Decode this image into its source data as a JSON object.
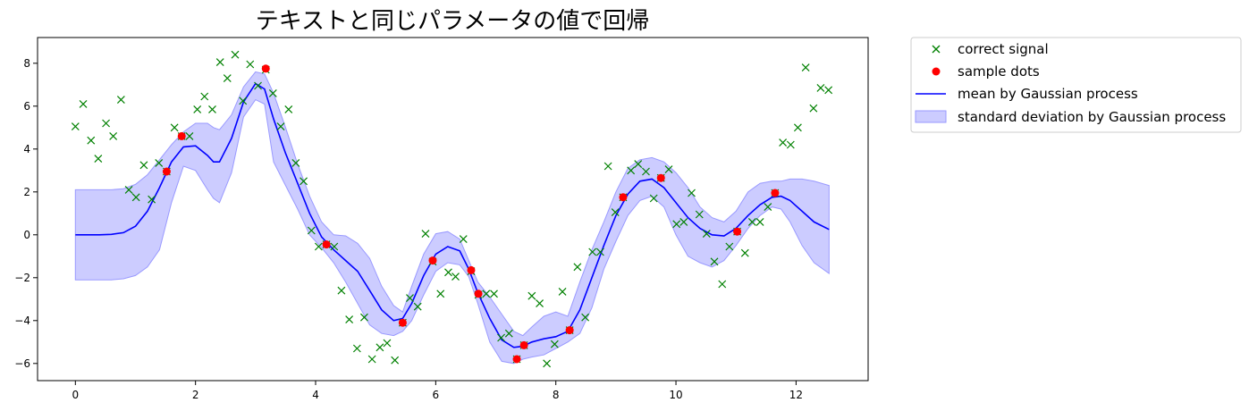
{
  "chart_data": {
    "type": "line",
    "title": "テキストと同じパラメータの値で回帰",
    "xlabel": "",
    "ylabel": "",
    "xlim": [
      -0.63,
      13.2
    ],
    "ylim": [
      -6.8,
      9.2
    ],
    "x_ticks": [
      0,
      2,
      4,
      6,
      8,
      10,
      12
    ],
    "y_ticks": [
      -6,
      -4,
      -2,
      0,
      2,
      4,
      6,
      8
    ],
    "grid": false,
    "legend_placement": "outside-top-right",
    "legend": {
      "correct_signal": "correct signal",
      "sample_dots": "sample dots",
      "mean": "mean by Gaussian process",
      "std": "standard deviation by Gaussian process"
    },
    "colors": {
      "correct_signal": "#008000",
      "sample_dots": "#ff0000",
      "mean": "#0000ff",
      "std_fill": "#ccccff",
      "std_edge": "#9999ff"
    },
    "series": [
      {
        "name": "correct signal",
        "marker": "x",
        "x": [
          0,
          0.13,
          0.26,
          0.38,
          0.51,
          0.63,
          0.76,
          0.89,
          1.01,
          1.14,
          1.27,
          1.39,
          1.52,
          1.65,
          1.77,
          1.9,
          2.03,
          2.15,
          2.28,
          2.41,
          2.53,
          2.66,
          2.79,
          2.91,
          3.04,
          3.17,
          3.29,
          3.42,
          3.55,
          3.67,
          3.8,
          3.93,
          4.05,
          4.18,
          4.31,
          4.43,
          4.56,
          4.69,
          4.81,
          4.94,
          5.07,
          5.19,
          5.32,
          5.45,
          5.57,
          5.7,
          5.83,
          5.95,
          6.08,
          6.21,
          6.33,
          6.46,
          6.59,
          6.71,
          6.84,
          6.97,
          7.09,
          7.22,
          7.35,
          7.47,
          7.6,
          7.73,
          7.85,
          7.98,
          8.11,
          8.23,
          8.36,
          8.49,
          8.61,
          8.74,
          8.87,
          8.99,
          9.12,
          9.25,
          9.37,
          9.5,
          9.63,
          9.75,
          9.88,
          10.01,
          10.13,
          10.26,
          10.39,
          10.51,
          10.64,
          10.77,
          10.89,
          11.02,
          11.15,
          11.27,
          11.4,
          11.53,
          11.65,
          11.78,
          11.91,
          12.03,
          12.16,
          12.29,
          12.41,
          12.54
        ],
        "y": [
          5.05,
          6.1,
          4.4,
          3.55,
          5.2,
          4.6,
          6.3,
          2.1,
          1.75,
          3.25,
          1.65,
          3.35,
          2.95,
          5.0,
          4.6,
          4.6,
          5.85,
          6.45,
          5.85,
          8.05,
          7.3,
          8.4,
          6.25,
          7.95,
          6.95,
          7.7,
          6.6,
          5.05,
          5.85,
          3.35,
          2.5,
          0.2,
          -0.55,
          -0.45,
          -0.55,
          -2.6,
          -3.95,
          -5.3,
          -3.85,
          -5.8,
          -5.25,
          -5.05,
          -5.85,
          -4.1,
          -2.95,
          -3.35,
          0.05,
          -1.25,
          -2.75,
          -1.75,
          -1.95,
          -0.2,
          -1.7,
          -2.8,
          -2.75,
          -2.75,
          -4.8,
          -4.6,
          -5.8,
          -5.15,
          -2.85,
          -3.2,
          -6.0,
          -5.1,
          -2.65,
          -4.45,
          -1.5,
          -3.85,
          -0.8,
          -0.8,
          3.2,
          1.05,
          1.75,
          3.0,
          3.3,
          2.95,
          1.7,
          2.65,
          3.05,
          0.5,
          0.6,
          1.95,
          0.95,
          0.05,
          -1.25,
          -2.3,
          -0.55,
          0.15,
          -0.85,
          0.6,
          0.6,
          1.3,
          1.95,
          4.3,
          4.2,
          5.0,
          7.8,
          5.9,
          6.85,
          6.75
        ]
      },
      {
        "name": "sample dots",
        "marker": "o",
        "x": [
          1.52,
          1.77,
          3.17,
          4.18,
          5.45,
          5.95,
          6.59,
          6.71,
          7.35,
          7.47,
          8.23,
          9.12,
          9.75,
          11.02,
          11.65
        ],
        "y": [
          2.95,
          4.6,
          7.75,
          -0.45,
          -4.1,
          -1.2,
          -1.65,
          -2.75,
          -5.8,
          -5.15,
          -4.45,
          1.75,
          2.65,
          0.15,
          1.95
        ]
      },
      {
        "name": "mean by Gaussian process",
        "marker": "line",
        "x": [
          0,
          0.2,
          0.4,
          0.6,
          0.8,
          1.0,
          1.2,
          1.4,
          1.6,
          1.8,
          2.0,
          2.2,
          2.3,
          2.4,
          2.6,
          2.8,
          3.0,
          3.15,
          3.3,
          3.5,
          3.7,
          3.9,
          4.1,
          4.3,
          4.5,
          4.7,
          4.9,
          5.1,
          5.3,
          5.45,
          5.6,
          5.8,
          6.0,
          6.2,
          6.4,
          6.55,
          6.7,
          6.9,
          7.1,
          7.3,
          7.45,
          7.6,
          7.8,
          8.0,
          8.2,
          8.4,
          8.6,
          8.8,
          9.0,
          9.2,
          9.4,
          9.6,
          9.8,
          10.0,
          10.2,
          10.4,
          10.6,
          10.8,
          11.0,
          11.2,
          11.4,
          11.6,
          11.75,
          11.9,
          12.1,
          12.3,
          12.55
        ],
        "y": [
          0.0,
          0.0,
          0.0,
          0.02,
          0.1,
          0.4,
          1.1,
          2.2,
          3.4,
          4.1,
          4.15,
          3.7,
          3.4,
          3.4,
          4.5,
          6.2,
          7.05,
          6.8,
          5.4,
          3.8,
          2.4,
          1.0,
          -0.1,
          -0.7,
          -1.2,
          -1.7,
          -2.6,
          -3.5,
          -4.0,
          -3.9,
          -3.2,
          -1.9,
          -0.9,
          -0.55,
          -0.75,
          -1.6,
          -2.7,
          -3.9,
          -4.9,
          -5.25,
          -5.2,
          -5.0,
          -4.85,
          -4.75,
          -4.5,
          -3.5,
          -2.0,
          -0.5,
          0.9,
          1.9,
          2.5,
          2.6,
          2.2,
          1.5,
          0.8,
          0.3,
          0.0,
          -0.05,
          0.3,
          0.9,
          1.4,
          1.75,
          1.8,
          1.6,
          1.1,
          0.6,
          0.25
        ]
      },
      {
        "name": "standard deviation by Gaussian process",
        "marker": "fill",
        "x": [
          0,
          0.2,
          0.4,
          0.6,
          0.8,
          1.0,
          1.2,
          1.4,
          1.6,
          1.8,
          2.0,
          2.2,
          2.3,
          2.4,
          2.6,
          2.8,
          3.0,
          3.15,
          3.3,
          3.5,
          3.7,
          3.9,
          4.1,
          4.3,
          4.5,
          4.7,
          4.9,
          5.1,
          5.3,
          5.45,
          5.6,
          5.8,
          6.0,
          6.2,
          6.4,
          6.55,
          6.7,
          6.9,
          7.1,
          7.3,
          7.45,
          7.6,
          7.8,
          8.0,
          8.2,
          8.4,
          8.6,
          8.8,
          9.0,
          9.2,
          9.4,
          9.6,
          9.8,
          10.0,
          10.2,
          10.4,
          10.6,
          10.8,
          11.0,
          11.2,
          11.4,
          11.6,
          11.75,
          11.9,
          12.1,
          12.3,
          12.55
        ],
        "upper": [
          2.1,
          2.1,
          2.1,
          2.1,
          2.15,
          2.35,
          2.8,
          3.5,
          4.2,
          4.8,
          5.2,
          5.2,
          5.0,
          4.9,
          5.6,
          6.9,
          7.6,
          7.5,
          6.6,
          5.0,
          3.3,
          1.8,
          0.6,
          0.0,
          -0.05,
          -0.4,
          -1.1,
          -2.4,
          -3.3,
          -3.6,
          -2.4,
          -0.9,
          0.05,
          0.15,
          -0.2,
          -1.2,
          -2.2,
          -2.9,
          -3.7,
          -4.5,
          -4.7,
          -4.3,
          -3.8,
          -3.6,
          -3.8,
          -2.2,
          -0.7,
          0.6,
          2.0,
          3.1,
          3.5,
          3.6,
          3.4,
          2.9,
          2.2,
          1.3,
          0.8,
          0.6,
          1.1,
          2.0,
          2.4,
          2.5,
          2.5,
          2.6,
          2.6,
          2.5,
          2.3
        ],
        "lower": [
          -2.1,
          -2.1,
          -2.1,
          -2.1,
          -2.05,
          -1.9,
          -1.5,
          -0.7,
          1.5,
          3.2,
          3.0,
          2.1,
          1.7,
          1.5,
          2.9,
          5.5,
          6.3,
          6.1,
          3.4,
          2.3,
          1.2,
          0.0,
          -0.6,
          -1.3,
          -2.2,
          -3.2,
          -4.2,
          -4.6,
          -4.7,
          -4.5,
          -4.0,
          -2.8,
          -1.7,
          -1.3,
          -1.4,
          -1.95,
          -3.2,
          -5.0,
          -5.9,
          -6.0,
          -5.8,
          -5.7,
          -5.6,
          -5.3,
          -5.0,
          -4.6,
          -3.4,
          -1.6,
          -0.3,
          0.9,
          1.6,
          1.8,
          1.3,
          0.0,
          -1.0,
          -1.3,
          -1.5,
          -1.2,
          -0.5,
          0.3,
          0.9,
          1.3,
          1.2,
          0.6,
          -0.5,
          -1.3,
          -1.8
        ]
      }
    ]
  }
}
